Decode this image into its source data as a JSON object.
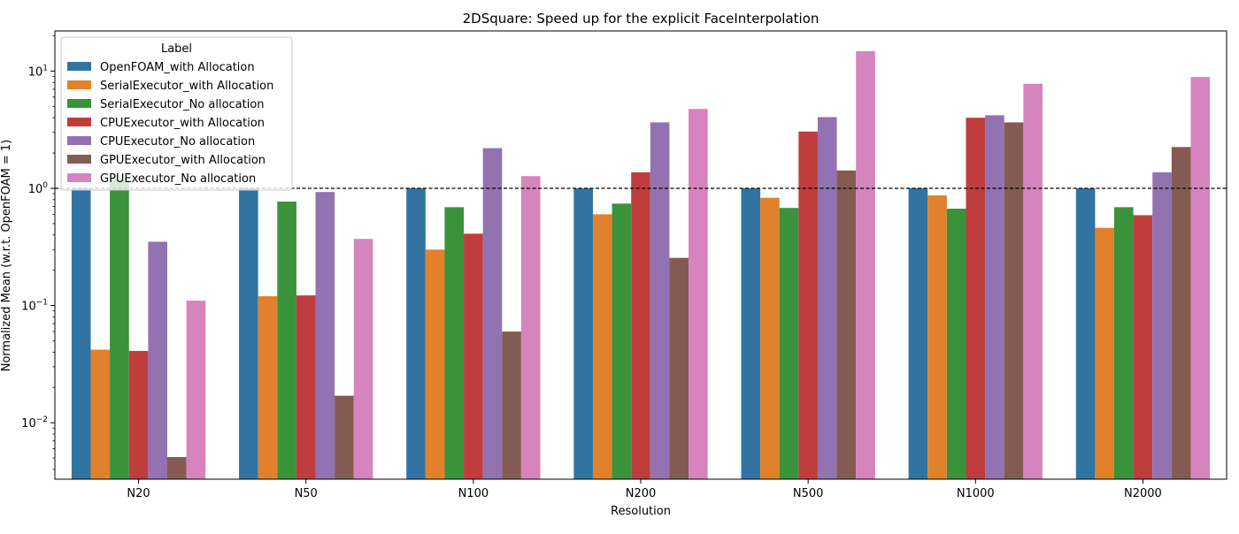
{
  "chart_data": {
    "type": "bar",
    "title": "2DSquare: Speed up for the explicit FaceInterpolation",
    "xlabel": "Resolution",
    "ylabel": "Normalized Mean (w.r.t. OpenFOAM = 1)",
    "yscale": "log",
    "ylim": [
      0.0033,
      22
    ],
    "ytick_labels": [
      {
        "value": 0.01,
        "base": "10",
        "exp": "−2"
      },
      {
        "value": 0.1,
        "base": "10",
        "exp": "−1"
      },
      {
        "value": 1,
        "base": "10",
        "exp": "0"
      },
      {
        "value": 10,
        "base": "10",
        "exp": "1"
      }
    ],
    "reference_line": {
      "value": 1,
      "style": "dashed"
    },
    "categories": [
      "N20",
      "N50",
      "N100",
      "N200",
      "N500",
      "N1000",
      "N2000"
    ],
    "legend": {
      "title": "Label",
      "position": "upper-left"
    },
    "series": [
      {
        "name": "OpenFOAM_with Allocation",
        "color": "#3274a1",
        "values": [
          1,
          1,
          1,
          1,
          1,
          1,
          1
        ]
      },
      {
        "name": "SerialExecutor_with Allocation",
        "color": "#e1812c",
        "values": [
          0.042,
          0.12,
          0.3,
          0.6,
          0.83,
          0.87,
          0.46
        ]
      },
      {
        "name": "SerialExecutor_No allocation",
        "color": "#3a923a",
        "values": [
          1.2,
          0.77,
          0.69,
          0.74,
          0.68,
          0.67,
          0.69
        ]
      },
      {
        "name": "CPUExecutor_with Allocation",
        "color": "#c03d3e",
        "values": [
          0.041,
          0.122,
          0.41,
          1.37,
          3.05,
          4.0,
          0.59
        ]
      },
      {
        "name": "CPUExecutor_No allocation",
        "color": "#9372b2",
        "values": [
          0.35,
          0.93,
          2.2,
          3.65,
          4.05,
          4.2,
          1.37
        ]
      },
      {
        "name": "GPUExecutor_with Allocation",
        "color": "#845b53",
        "values": [
          0.0051,
          0.017,
          0.06,
          0.255,
          1.42,
          3.65,
          2.25
        ]
      },
      {
        "name": "GPUExecutor_No allocation",
        "color": "#d684bd",
        "values": [
          0.11,
          0.37,
          1.27,
          4.75,
          14.8,
          7.8,
          8.9
        ]
      }
    ]
  }
}
